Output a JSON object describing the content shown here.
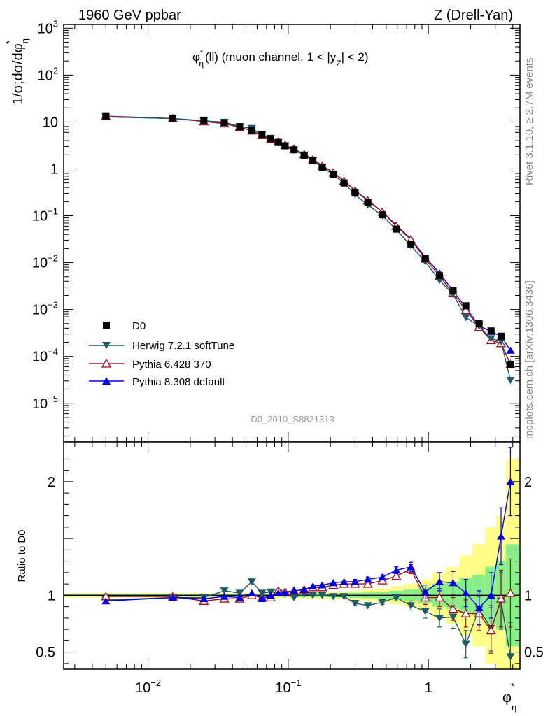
{
  "header": {
    "left_label": "1960 GeV ppbar",
    "right_label": "Z (Drell-Yan)"
  },
  "side_labels": {
    "rivet": "Rivet 3.1.10, ≥ 2.7M events",
    "source": "mcplots.cern.ch [arXiv:1306.3436]"
  },
  "chart_data": [
    {
      "type": "line",
      "panel": "main",
      "title_parts": {
        "base": "φ",
        "sub": "η",
        "sup": "*",
        "rest": "(ll) (muon channel, 1 < |y",
        "ysub": "Z",
        "tail": "| < 2)"
      },
      "ylabel_parts": {
        "base": "1/σ;dσ/dφ",
        "sub": "η",
        "sup": "*"
      },
      "xlabel_parts": {
        "base": "φ",
        "sub": "η",
        "sup": "*"
      },
      "watermark": "D0_2010_S8821313",
      "yscale": "log",
      "xscale": "log",
      "xlim": [
        0.0025,
        4.5
      ],
      "ylim": [
        1.5e-06,
        1200
      ],
      "yticks": [
        {
          "v": 1000,
          "base": "10",
          "exp": "3"
        },
        {
          "v": 100,
          "base": "10",
          "exp": "2"
        },
        {
          "v": 10,
          "base": "10",
          "exp": ""
        },
        {
          "v": 1,
          "base": "1",
          "exp": ""
        },
        {
          "v": 0.1,
          "base": "10",
          "exp": "−1"
        },
        {
          "v": 0.01,
          "base": "10",
          "exp": "−2"
        },
        {
          "v": 0.001,
          "base": "10",
          "exp": "−3"
        },
        {
          "v": 0.0001,
          "base": "10",
          "exp": "−4"
        },
        {
          "v": 1e-05,
          "base": "10",
          "exp": "−5"
        }
      ],
      "x": [
        0.005,
        0.015,
        0.025,
        0.035,
        0.045,
        0.055,
        0.065,
        0.075,
        0.085,
        0.095,
        0.11,
        0.13,
        0.15,
        0.175,
        0.21,
        0.25,
        0.3,
        0.37,
        0.47,
        0.59,
        0.75,
        0.95,
        1.2,
        1.5,
        1.85,
        2.3,
        2.8,
        3.3,
        3.85
      ],
      "series": [
        {
          "name": "D0",
          "color": "#000000",
          "marker": "square",
          "values": [
            13.5,
            12.1,
            10.9,
            9.6,
            7.9,
            6.5,
            5.3,
            4.4,
            3.65,
            3.1,
            2.55,
            1.95,
            1.49,
            1.08,
            0.76,
            0.5,
            0.31,
            0.19,
            0.105,
            0.052,
            0.025,
            0.0125,
            0.0053,
            0.0025,
            0.0012,
            0.0005,
            0.00035,
            0.00027,
            6.8e-05
          ]
        },
        {
          "name": "Herwig 7.2.1 softTune",
          "color": "#1f5b63",
          "marker": "tri-down",
          "values": [
            13.0,
            11.8,
            10.6,
            9.9,
            8.0,
            7.3,
            5.4,
            4.5,
            3.68,
            3.1,
            2.5,
            1.98,
            1.5,
            1.08,
            0.75,
            0.5,
            0.28,
            0.17,
            0.1,
            0.051,
            0.023,
            0.0105,
            0.0042,
            0.0021,
            0.00068,
            0.00044,
            0.00024,
            0.00021,
            3.1e-05
          ]
        },
        {
          "name": "Pythia 6.428 370",
          "color": "#a01020",
          "marker": "tri-up-open",
          "values": [
            13.3,
            11.9,
            10.2,
            9.2,
            7.7,
            6.5,
            5.2,
            4.3,
            3.8,
            3.2,
            2.65,
            2.05,
            1.59,
            1.16,
            0.83,
            0.55,
            0.34,
            0.21,
            0.12,
            0.06,
            0.031,
            0.012,
            0.0052,
            0.0022,
            0.00097,
            0.00042,
            0.00022,
            0.00019,
            6.8e-05
          ]
        },
        {
          "name": "Pythia 8.308 default",
          "color": "#0000dd",
          "marker": "tri-up",
          "values": [
            12.8,
            11.9,
            10.5,
            9.3,
            7.7,
            6.6,
            5.1,
            4.4,
            3.7,
            3.15,
            2.65,
            2.05,
            1.62,
            1.17,
            0.84,
            0.56,
            0.345,
            0.215,
            0.12,
            0.063,
            0.032,
            0.013,
            0.006,
            0.0025,
            0.0011,
            0.00045,
            0.00034,
            0.00027,
            0.000135
          ]
        }
      ]
    },
    {
      "type": "line",
      "panel": "ratio",
      "ylabel": "Ratio to D0",
      "xscale": "log",
      "xlim": [
        0.0025,
        4.5
      ],
      "ylim": [
        0.35,
        2.35
      ],
      "yticks": [
        {
          "v": 2,
          "label": "2"
        },
        {
          "v": 1,
          "label": "1"
        },
        {
          "v": 0.5,
          "label": "0.5"
        }
      ],
      "xticks": [
        {
          "v": 0.01,
          "base": "10",
          "exp": "−2"
        },
        {
          "v": 0.1,
          "base": "10",
          "exp": "−1"
        },
        {
          "v": 1,
          "base": "1",
          "exp": ""
        }
      ],
      "x": [
        0.005,
        0.015,
        0.025,
        0.035,
        0.045,
        0.055,
        0.065,
        0.075,
        0.085,
        0.095,
        0.11,
        0.13,
        0.15,
        0.175,
        0.21,
        0.25,
        0.3,
        0.37,
        0.47,
        0.59,
        0.75,
        0.95,
        1.2,
        1.5,
        1.85,
        2.3,
        2.8,
        3.3,
        3.85
      ],
      "band_stat": [
        0.01,
        0.01,
        0.01,
        0.01,
        0.01,
        0.01,
        0.012,
        0.012,
        0.013,
        0.013,
        0.014,
        0.015,
        0.015,
        0.016,
        0.018,
        0.02,
        0.022,
        0.025,
        0.03,
        0.04,
        0.05,
        0.07,
        0.1,
        0.12,
        0.15,
        0.18,
        0.25,
        0.3,
        0.45
      ],
      "band_total": [
        0.02,
        0.02,
        0.02,
        0.02,
        0.02,
        0.02,
        0.022,
        0.022,
        0.023,
        0.023,
        0.024,
        0.025,
        0.026,
        0.028,
        0.03,
        0.035,
        0.04,
        0.05,
        0.06,
        0.08,
        0.1,
        0.14,
        0.2,
        0.25,
        0.35,
        0.45,
        0.6,
        0.7,
        1.2
      ],
      "series": [
        {
          "name": "Herwig 7.2.1 softTune",
          "color": "#1f5b63",
          "marker": "tri-down",
          "values": [
            0.96,
            0.98,
            0.98,
            1.04,
            1.02,
            1.12,
            1.02,
            1.03,
            1.02,
            1.01,
            0.98,
            1.01,
            1.0,
            1.0,
            0.99,
            0.99,
            0.93,
            0.91,
            0.94,
            0.98,
            0.91,
            0.86,
            0.8,
            0.81,
            0.57,
            0.88,
            0.71,
            0.95,
            0.46
          ],
          "err": [
            0.01,
            0.01,
            0.01,
            0.01,
            0.01,
            0.01,
            0.01,
            0.01,
            0.01,
            0.01,
            0.01,
            0.01,
            0.01,
            0.01,
            0.01,
            0.01,
            0.02,
            0.02,
            0.02,
            0.03,
            0.04,
            0.06,
            0.08,
            0.1,
            0.12,
            0.15,
            0.2,
            0.25,
            0.3
          ]
        },
        {
          "name": "Pythia 6.428 370",
          "color": "#a01020",
          "marker": "tri-up-open",
          "values": [
            0.99,
            0.99,
            0.95,
            0.97,
            0.97,
            1.0,
            0.98,
            0.98,
            1.04,
            1.03,
            1.04,
            1.05,
            1.07,
            1.07,
            1.09,
            1.1,
            1.1,
            1.1,
            1.13,
            1.17,
            1.23,
            0.98,
            0.98,
            0.88,
            0.84,
            0.84,
            0.69,
            0.97,
            1.02
          ],
          "err": [
            0.01,
            0.01,
            0.01,
            0.01,
            0.01,
            0.01,
            0.01,
            0.01,
            0.01,
            0.01,
            0.01,
            0.01,
            0.01,
            0.01,
            0.01,
            0.01,
            0.02,
            0.02,
            0.02,
            0.03,
            0.04,
            0.06,
            0.08,
            0.1,
            0.12,
            0.15,
            0.2,
            0.25,
            0.3
          ]
        },
        {
          "name": "Pythia 8.308 default",
          "color": "#0000dd",
          "marker": "tri-up",
          "values": [
            0.95,
            0.98,
            0.97,
            0.99,
            0.98,
            1.02,
            0.97,
            1.0,
            1.02,
            1.02,
            1.04,
            1.05,
            1.08,
            1.09,
            1.11,
            1.12,
            1.12,
            1.14,
            1.16,
            1.22,
            1.25,
            1.03,
            1.12,
            1.11,
            1.02,
            0.89,
            1.0,
            1.52,
            2.0
          ],
          "err": [
            0.01,
            0.01,
            0.01,
            0.01,
            0.01,
            0.01,
            0.01,
            0.01,
            0.01,
            0.01,
            0.01,
            0.01,
            0.01,
            0.01,
            0.01,
            0.01,
            0.02,
            0.02,
            0.02,
            0.03,
            0.04,
            0.06,
            0.08,
            0.1,
            0.12,
            0.15,
            0.2,
            0.25,
            0.3
          ]
        }
      ]
    }
  ]
}
